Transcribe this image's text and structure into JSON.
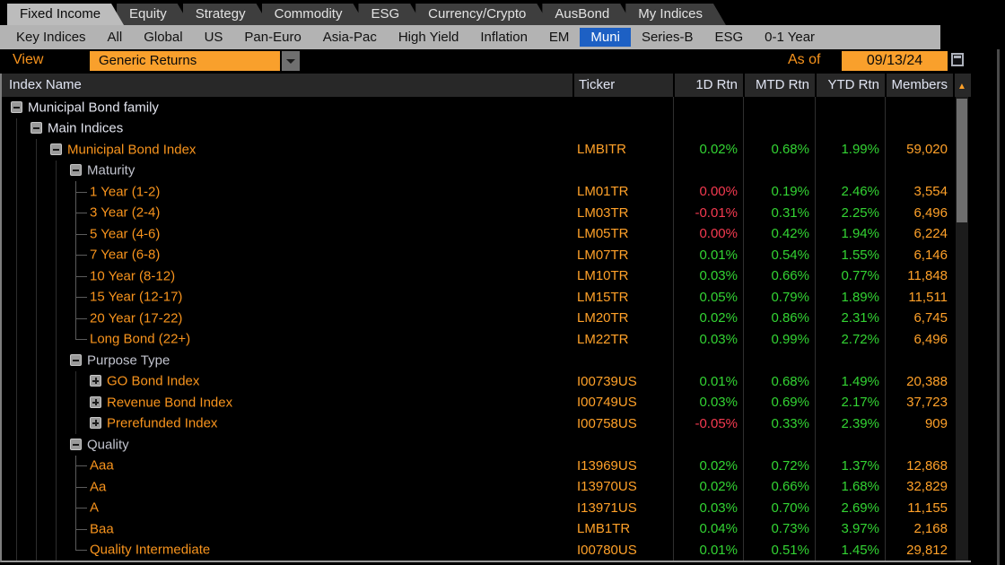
{
  "tabs": {
    "items": [
      {
        "label": "Fixed Income",
        "active": true
      },
      {
        "label": "Equity",
        "active": false
      },
      {
        "label": "Strategy",
        "active": false
      },
      {
        "label": "Commodity",
        "active": false
      },
      {
        "label": "ESG",
        "active": false
      },
      {
        "label": "Currency/Crypto",
        "active": false
      },
      {
        "label": "AusBond",
        "active": false
      },
      {
        "label": "My Indices",
        "active": false
      }
    ]
  },
  "subtabs": {
    "items": [
      {
        "label": "Key Indices",
        "active": false
      },
      {
        "label": "All",
        "active": false
      },
      {
        "label": "Global",
        "active": false
      },
      {
        "label": "US",
        "active": false
      },
      {
        "label": "Pan-Euro",
        "active": false
      },
      {
        "label": "Asia-Pac",
        "active": false
      },
      {
        "label": "High Yield",
        "active": false
      },
      {
        "label": "Inflation",
        "active": false
      },
      {
        "label": "EM",
        "active": false
      },
      {
        "label": "Muni",
        "active": true
      },
      {
        "label": "Series-B",
        "active": false
      },
      {
        "label": "ESG",
        "active": false
      },
      {
        "label": "0-1 Year",
        "active": false
      }
    ]
  },
  "toolbar": {
    "view_label": "View",
    "view_value": "Generic Returns",
    "as_of_label": "As of",
    "as_of_date": "09/13/24"
  },
  "table": {
    "columns": {
      "name": "Index Name",
      "ticker": "Ticker",
      "d1": "1D Rtn",
      "mtd": "MTD Rtn",
      "ytd": "YTD Rtn",
      "members": "Members"
    },
    "sort_indicator": "▲",
    "rows": [
      {
        "name": "Municipal Bond family",
        "level": 0,
        "icon": "collapse",
        "style": "white",
        "ticker": "",
        "d1": "",
        "mtd": "",
        "ytd": "",
        "members": "",
        "neg": false
      },
      {
        "name": "Main Indices",
        "level": 1,
        "icon": "collapse",
        "style": "white",
        "ticker": "",
        "d1": "",
        "mtd": "",
        "ytd": "",
        "members": "",
        "neg": false
      },
      {
        "name": "Municipal Bond Index",
        "level": 2,
        "icon": "collapse",
        "style": "orange",
        "ticker": "LMBITR",
        "d1": "0.02%",
        "mtd": "0.68%",
        "ytd": "1.99%",
        "members": "59,020",
        "neg": false
      },
      {
        "name": "Maturity",
        "level": 3,
        "icon": "collapse",
        "style": "gray",
        "ticker": "",
        "d1": "",
        "mtd": "",
        "ytd": "",
        "members": "",
        "neg": false
      },
      {
        "name": "1 Year (1-2)",
        "level": 4,
        "icon": "branch",
        "style": "orange",
        "ticker": "LM01TR",
        "d1": "0.00%",
        "mtd": "0.19%",
        "ytd": "2.46%",
        "members": "3,554",
        "neg": true
      },
      {
        "name": "3 Year (2-4)",
        "level": 4,
        "icon": "branch",
        "style": "orange",
        "ticker": "LM03TR",
        "d1": "-0.01%",
        "mtd": "0.31%",
        "ytd": "2.25%",
        "members": "6,496",
        "neg": true
      },
      {
        "name": "5 Year (4-6)",
        "level": 4,
        "icon": "branch",
        "style": "orange",
        "ticker": "LM05TR",
        "d1": "0.00%",
        "mtd": "0.42%",
        "ytd": "1.94%",
        "members": "6,224",
        "neg": true
      },
      {
        "name": "7 Year (6-8)",
        "level": 4,
        "icon": "branch",
        "style": "orange",
        "ticker": "LM07TR",
        "d1": "0.01%",
        "mtd": "0.54%",
        "ytd": "1.55%",
        "members": "6,146",
        "neg": false
      },
      {
        "name": "10 Year (8-12)",
        "level": 4,
        "icon": "branch",
        "style": "orange",
        "ticker": "LM10TR",
        "d1": "0.03%",
        "mtd": "0.66%",
        "ytd": "0.77%",
        "members": "11,848",
        "neg": false
      },
      {
        "name": "15 Year (12-17)",
        "level": 4,
        "icon": "branch",
        "style": "orange",
        "ticker": "LM15TR",
        "d1": "0.05%",
        "mtd": "0.79%",
        "ytd": "1.89%",
        "members": "11,511",
        "neg": false
      },
      {
        "name": "20 Year (17-22)",
        "level": 4,
        "icon": "branch",
        "style": "orange",
        "ticker": "LM20TR",
        "d1": "0.02%",
        "mtd": "0.86%",
        "ytd": "2.31%",
        "members": "6,745",
        "neg": false
      },
      {
        "name": "Long Bond (22+)",
        "level": 4,
        "icon": "branch-end",
        "style": "orange",
        "ticker": "LM22TR",
        "d1": "0.03%",
        "mtd": "0.99%",
        "ytd": "2.72%",
        "members": "6,496",
        "neg": false
      },
      {
        "name": "Purpose Type",
        "level": 3,
        "icon": "collapse",
        "style": "gray",
        "ticker": "",
        "d1": "",
        "mtd": "",
        "ytd": "",
        "members": "",
        "neg": false
      },
      {
        "name": "GO Bond Index",
        "level": 4,
        "icon": "expand",
        "style": "orange",
        "ticker": "I00739US",
        "d1": "0.01%",
        "mtd": "0.68%",
        "ytd": "1.49%",
        "members": "20,388",
        "neg": false
      },
      {
        "name": "Revenue Bond Index",
        "level": 4,
        "icon": "expand",
        "style": "orange",
        "ticker": "I00749US",
        "d1": "0.03%",
        "mtd": "0.69%",
        "ytd": "2.17%",
        "members": "37,723",
        "neg": false
      },
      {
        "name": "Prerefunded Index",
        "level": 4,
        "icon": "expand",
        "style": "orange",
        "ticker": "I00758US",
        "d1": "-0.05%",
        "mtd": "0.33%",
        "ytd": "2.39%",
        "members": "909",
        "neg": true
      },
      {
        "name": "Quality",
        "level": 3,
        "icon": "collapse",
        "style": "gray",
        "ticker": "",
        "d1": "",
        "mtd": "",
        "ytd": "",
        "members": "",
        "neg": false
      },
      {
        "name": "Aaa",
        "level": 4,
        "icon": "branch",
        "style": "orange",
        "ticker": "I13969US",
        "d1": "0.02%",
        "mtd": "0.72%",
        "ytd": "1.37%",
        "members": "12,868",
        "neg": false
      },
      {
        "name": "Aa",
        "level": 4,
        "icon": "branch",
        "style": "orange",
        "ticker": "I13970US",
        "d1": "0.02%",
        "mtd": "0.66%",
        "ytd": "1.68%",
        "members": "32,829",
        "neg": false
      },
      {
        "name": "A",
        "level": 4,
        "icon": "branch",
        "style": "orange",
        "ticker": "I13971US",
        "d1": "0.03%",
        "mtd": "0.70%",
        "ytd": "2.69%",
        "members": "11,155",
        "neg": false
      },
      {
        "name": "Baa",
        "level": 4,
        "icon": "branch",
        "style": "orange",
        "ticker": "LMB1TR",
        "d1": "0.04%",
        "mtd": "0.73%",
        "ytd": "3.97%",
        "members": "2,168",
        "neg": false
      },
      {
        "name": "Quality Intermediate",
        "level": 4,
        "icon": "branch-end",
        "style": "orange",
        "ticker": "I00780US",
        "d1": "0.01%",
        "mtd": "0.51%",
        "ytd": "1.45%",
        "members": "29,812",
        "neg": false
      }
    ]
  },
  "colors": {
    "accent_orange": "#f8941d",
    "value_orange": "#ffa129",
    "positive_green": "#33d433",
    "negative_red": "#f43a50",
    "selected_blue": "#1d60c4",
    "field_orange": "#f9a02c"
  }
}
